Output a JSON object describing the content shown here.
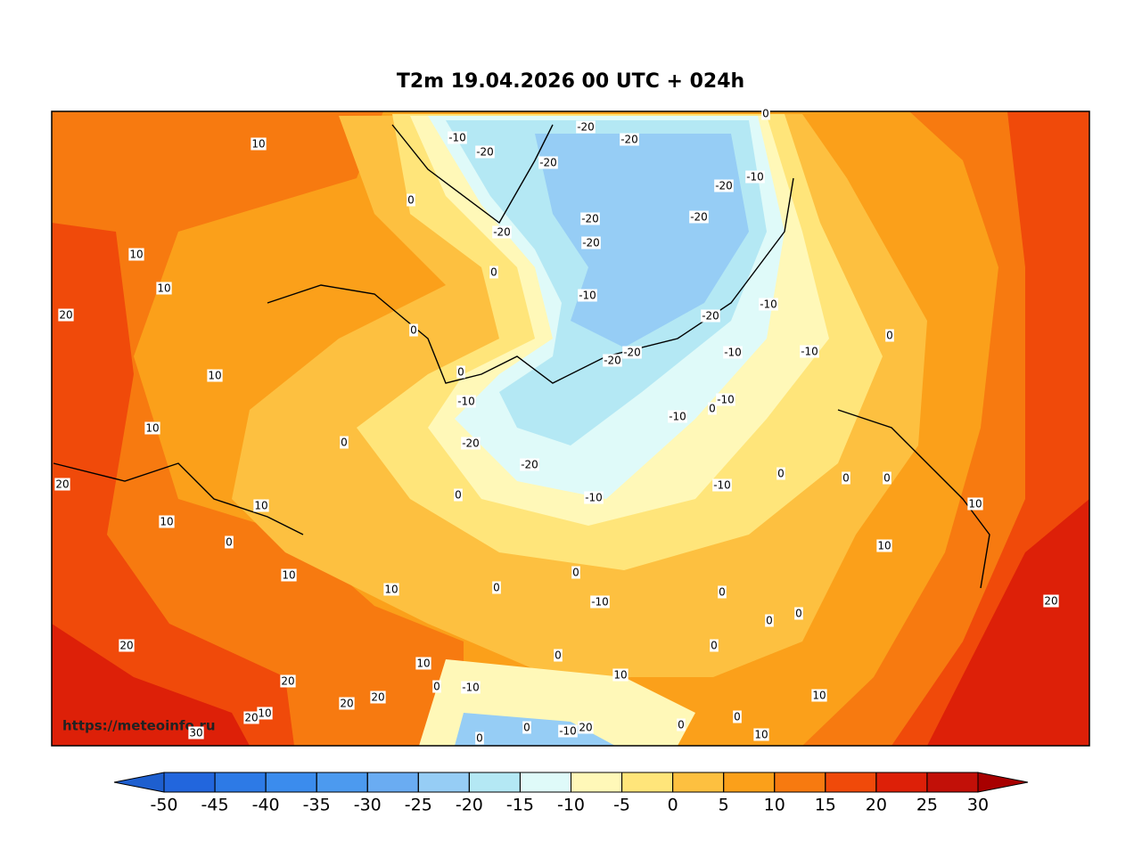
{
  "title": "T2m 19.04.2026 00 UTC + 024h",
  "watermark": "https://meteoinfo.ru",
  "colorbar": {
    "ticks": [
      -50,
      -45,
      -40,
      -35,
      -30,
      -25,
      -20,
      -15,
      -10,
      -5,
      0,
      5,
      10,
      15,
      20,
      25,
      30
    ],
    "under_color": "#1e5fcf",
    "colors": [
      "#2266dd",
      "#2d7ae6",
      "#3b8ced",
      "#4c9aef",
      "#6aacf2",
      "#96cdf5",
      "#b4e8f4",
      "#dffaf9",
      "#fff8b8",
      "#ffe57a",
      "#fdc040",
      "#fba01a",
      "#f77a10",
      "#f04a0a",
      "#dd2008",
      "#c21008"
    ],
    "over_color": "#a80000"
  },
  "map": {
    "contour_labels": [
      10,
      -10,
      -20,
      -20,
      -20,
      -20,
      0,
      -20,
      -10,
      0,
      -20,
      -20,
      -20,
      -20,
      10,
      0,
      10,
      -10,
      -20,
      -10,
      20,
      0,
      0,
      -20,
      -20,
      -10,
      -10,
      10,
      0,
      -10,
      -10,
      0,
      -10,
      10,
      0,
      -20,
      -20,
      0,
      0,
      0,
      -10,
      20,
      0,
      -10,
      10,
      10,
      10,
      0,
      10,
      0,
      10,
      0,
      10,
      0,
      -10,
      20,
      0,
      0,
      20,
      0,
      0,
      10,
      10,
      20,
      0,
      -10,
      10,
      20,
      20,
      10,
      20,
      0,
      0,
      0,
      -10,
      20,
      10,
      30,
      0
    ]
  }
}
